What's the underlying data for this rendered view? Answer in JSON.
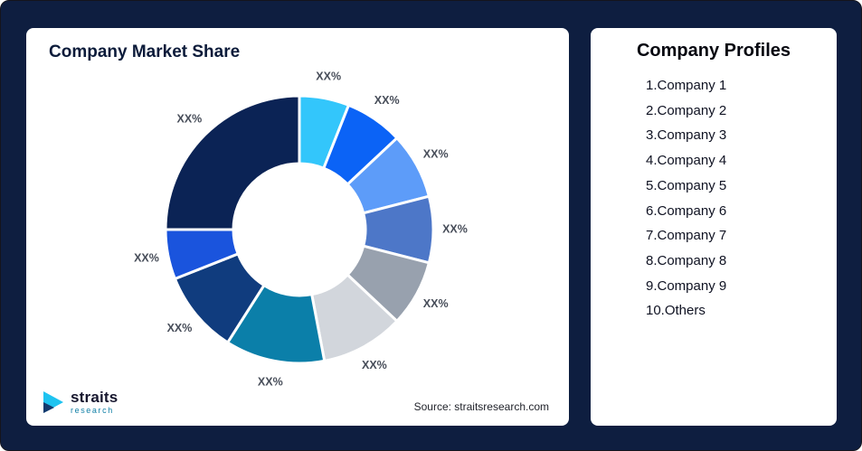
{
  "frame": {
    "background_color": "#0e1e40",
    "card_color": "#ffffff"
  },
  "left_card": {
    "title": "Company Market Share",
    "source": "Source: straitsresearch.com",
    "logo_name": "straits",
    "logo_sub": "research",
    "logo_accent_color": "#1ec3f0",
    "logo_dark_color": "#123a6e"
  },
  "right_card": {
    "title": "Company Profiles",
    "items": [
      "1.Company 1",
      "2.Company 2",
      "3.Company 3",
      "4.Company 4",
      "5.Company 5",
      "6.Company 6",
      "7.Company 7",
      "8.Company 8",
      "9.Company 9",
      "10.Others"
    ]
  },
  "chart_data": {
    "type": "pie",
    "subtype": "donut",
    "title": "Company Market Share",
    "legend_position": "right-card",
    "note": "All slice data labels show placeholder text XX%; values are approximate visual proportions (percent).",
    "segments": [
      {
        "name": "Company 1",
        "label": "XX%",
        "value": 6,
        "color": "#33c6fb"
      },
      {
        "name": "Company 2",
        "label": "XX%",
        "value": 7,
        "color": "#0b63f6"
      },
      {
        "name": "Company 3",
        "label": "XX%",
        "value": 8,
        "color": "#5d9cf9"
      },
      {
        "name": "Company 4",
        "label": "XX%",
        "value": 8,
        "color": "#4d77c8"
      },
      {
        "name": "Company 5",
        "label": "XX%",
        "value": 8,
        "color": "#98a1ae"
      },
      {
        "name": "Company 6",
        "label": "XX%",
        "value": 10,
        "color": "#d2d6dc"
      },
      {
        "name": "Company 7",
        "label": "XX%",
        "value": 12,
        "color": "#0b7fa9"
      },
      {
        "name": "Company 8",
        "label": "XX%",
        "value": 10,
        "color": "#103c7e"
      },
      {
        "name": "Company 9",
        "label": "XX%",
        "value": 6,
        "color": "#1a54dd"
      },
      {
        "name": "Others",
        "label": "XX%",
        "value": 25,
        "color": "#0b2355"
      }
    ]
  }
}
